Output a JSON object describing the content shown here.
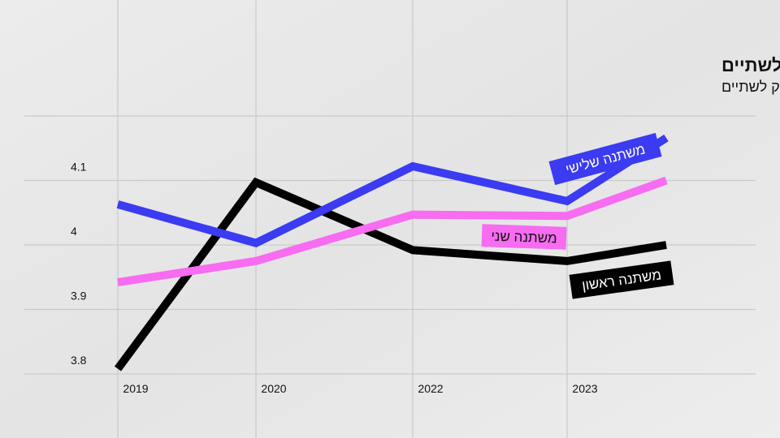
{
  "chart_data": {
    "type": "line",
    "title": "טקסט מתחלק לשתיים",
    "subtitle": "טקסט מתחלק לשתיים",
    "categories": [
      "2019",
      "2020",
      "2022",
      "2023",
      null
    ],
    "series": [
      {
        "name": "משתנה ראשון",
        "color": "#000000",
        "values": [
          3.808,
          4.097,
          3.992,
          3.975,
          4.0
        ]
      },
      {
        "name": "משתנה שני",
        "color": "#f76cf0",
        "values": [
          3.942,
          3.975,
          4.047,
          4.045,
          4.1
        ]
      },
      {
        "name": "משתנה שלישי",
        "color": "#3b3bf2",
        "values": [
          4.063,
          4.003,
          4.122,
          4.068,
          4.166
        ]
      }
    ],
    "ylim": [
      3.8,
      4.2
    ],
    "yticks": [
      3.8,
      3.9,
      4.0,
      4.1
    ],
    "grid": true
  }
}
